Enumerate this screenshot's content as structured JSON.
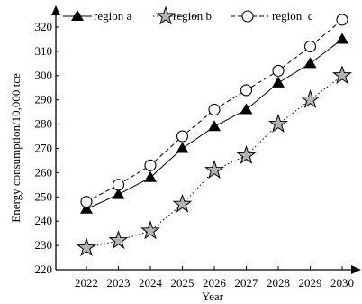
{
  "chart_data": {
    "type": "line",
    "title": "",
    "xlabel": "Year",
    "ylabel": "Energy consumption/10,000 tce",
    "categories": [
      "2022",
      "2023",
      "2024",
      "2025",
      "2026",
      "2027",
      "2028",
      "2029",
      "2030"
    ],
    "ylim": [
      220,
      320
    ],
    "yticks": [
      220,
      230,
      240,
      250,
      260,
      270,
      280,
      290,
      300,
      310,
      320
    ],
    "grid": false,
    "legend_position": "top",
    "series": [
      {
        "name": "region a",
        "marker": "filled-triangle",
        "line_style": "solid",
        "color": "#000000",
        "values": [
          245,
          251,
          258,
          270,
          279,
          286,
          297,
          305,
          315
        ]
      },
      {
        "name": "region b",
        "marker": "gray-star",
        "line_style": "dotted",
        "color": "#000000",
        "marker_fill": "#b3b3b3",
        "values": [
          229,
          232,
          236,
          247,
          261,
          267,
          280,
          290,
          300
        ]
      },
      {
        "name": "region  c",
        "marker": "open-circle",
        "line_style": "dashed",
        "color": "#000000",
        "values": [
          248,
          255,
          263,
          275,
          286,
          294,
          302,
          312,
          323
        ]
      }
    ]
  }
}
